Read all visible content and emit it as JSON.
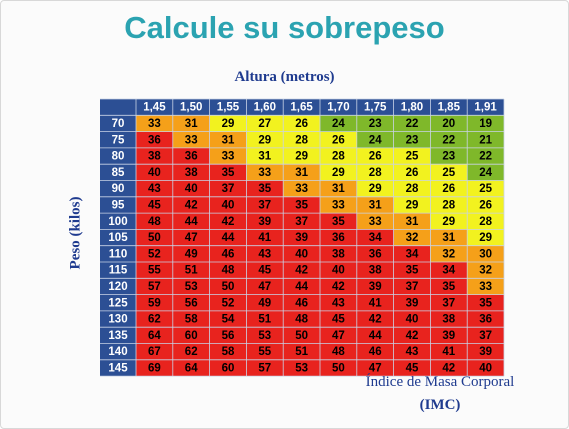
{
  "title": "Calcule su sobrepeso",
  "caption_line1": "Índice de Masa Corporal",
  "caption_line2": "(IMC)",
  "colors": {
    "title": "#2ba3b1",
    "header_bg": "#2c4f94",
    "header_text": "#ffffff",
    "green": "#7fb82a",
    "yellow": "#f2f21f",
    "orange": "#f5a019",
    "red": "#e8231e"
  },
  "chart_data": {
    "type": "heatmap",
    "xlabel": "Altura (metros)",
    "ylabel": "Peso (kilos)",
    "x": [
      "1,45",
      "1,50",
      "1,55",
      "1,60",
      "1,65",
      "1,70",
      "1,75",
      "1,80",
      "1,85",
      "1,91"
    ],
    "y": [
      "70",
      "75",
      "80",
      "85",
      "90",
      "95",
      "100",
      "105",
      "110",
      "115",
      "120",
      "125",
      "130",
      "135",
      "140",
      "145"
    ],
    "values": [
      [
        33,
        31,
        29,
        27,
        26,
        24,
        23,
        22,
        20,
        19
      ],
      [
        36,
        33,
        31,
        29,
        28,
        26,
        24,
        23,
        22,
        21
      ],
      [
        38,
        36,
        33,
        31,
        29,
        28,
        26,
        25,
        23,
        22
      ],
      [
        40,
        38,
        35,
        33,
        31,
        29,
        28,
        26,
        25,
        24
      ],
      [
        43,
        40,
        37,
        35,
        33,
        31,
        29,
        28,
        26,
        25
      ],
      [
        45,
        42,
        40,
        37,
        35,
        33,
        31,
        29,
        28,
        26
      ],
      [
        48,
        44,
        42,
        39,
        37,
        35,
        33,
        31,
        29,
        28
      ],
      [
        50,
        47,
        44,
        41,
        39,
        36,
        34,
        32,
        31,
        29
      ],
      [
        52,
        49,
        46,
        43,
        40,
        38,
        36,
        34,
        32,
        30
      ],
      [
        55,
        51,
        48,
        45,
        42,
        40,
        38,
        35,
        34,
        32
      ],
      [
        57,
        53,
        50,
        47,
        44,
        42,
        39,
        37,
        35,
        33
      ],
      [
        59,
        56,
        52,
        49,
        46,
        43,
        41,
        39,
        37,
        35
      ],
      [
        62,
        58,
        54,
        51,
        48,
        45,
        42,
        40,
        38,
        36
      ],
      [
        64,
        60,
        56,
        53,
        50,
        47,
        44,
        42,
        39,
        37
      ],
      [
        67,
        62,
        58,
        55,
        51,
        48,
        46,
        43,
        41,
        39
      ],
      [
        69,
        64,
        60,
        57,
        53,
        50,
        47,
        45,
        42,
        40
      ]
    ],
    "category_colors": [
      [
        "orange",
        "orange",
        "yellow",
        "yellow",
        "yellow",
        "green",
        "green",
        "green",
        "green",
        "green"
      ],
      [
        "red",
        "orange",
        "orange",
        "yellow",
        "yellow",
        "yellow",
        "green",
        "green",
        "green",
        "green"
      ],
      [
        "red",
        "red",
        "orange",
        "yellow",
        "yellow",
        "yellow",
        "yellow",
        "yellow",
        "green",
        "green"
      ],
      [
        "red",
        "red",
        "red",
        "orange",
        "orange",
        "yellow",
        "yellow",
        "yellow",
        "yellow",
        "green"
      ],
      [
        "red",
        "red",
        "red",
        "red",
        "orange",
        "orange",
        "yellow",
        "yellow",
        "yellow",
        "yellow"
      ],
      [
        "red",
        "red",
        "red",
        "red",
        "red",
        "orange",
        "orange",
        "yellow",
        "yellow",
        "yellow"
      ],
      [
        "red",
        "red",
        "red",
        "red",
        "red",
        "red",
        "orange",
        "orange",
        "yellow",
        "yellow"
      ],
      [
        "red",
        "red",
        "red",
        "red",
        "red",
        "red",
        "red",
        "orange",
        "orange",
        "yellow"
      ],
      [
        "red",
        "red",
        "red",
        "red",
        "red",
        "red",
        "red",
        "red",
        "orange",
        "orange"
      ],
      [
        "red",
        "red",
        "red",
        "red",
        "red",
        "red",
        "red",
        "red",
        "red",
        "orange"
      ],
      [
        "red",
        "red",
        "red",
        "red",
        "red",
        "red",
        "red",
        "red",
        "red",
        "orange"
      ],
      [
        "red",
        "red",
        "red",
        "red",
        "red",
        "red",
        "red",
        "red",
        "red",
        "red"
      ],
      [
        "red",
        "red",
        "red",
        "red",
        "red",
        "red",
        "red",
        "red",
        "red",
        "red"
      ],
      [
        "red",
        "red",
        "red",
        "red",
        "red",
        "red",
        "red",
        "red",
        "red",
        "red"
      ],
      [
        "red",
        "red",
        "red",
        "red",
        "red",
        "red",
        "red",
        "red",
        "red",
        "red"
      ],
      [
        "red",
        "red",
        "red",
        "red",
        "red",
        "red",
        "red",
        "red",
        "red",
        "red"
      ]
    ]
  }
}
